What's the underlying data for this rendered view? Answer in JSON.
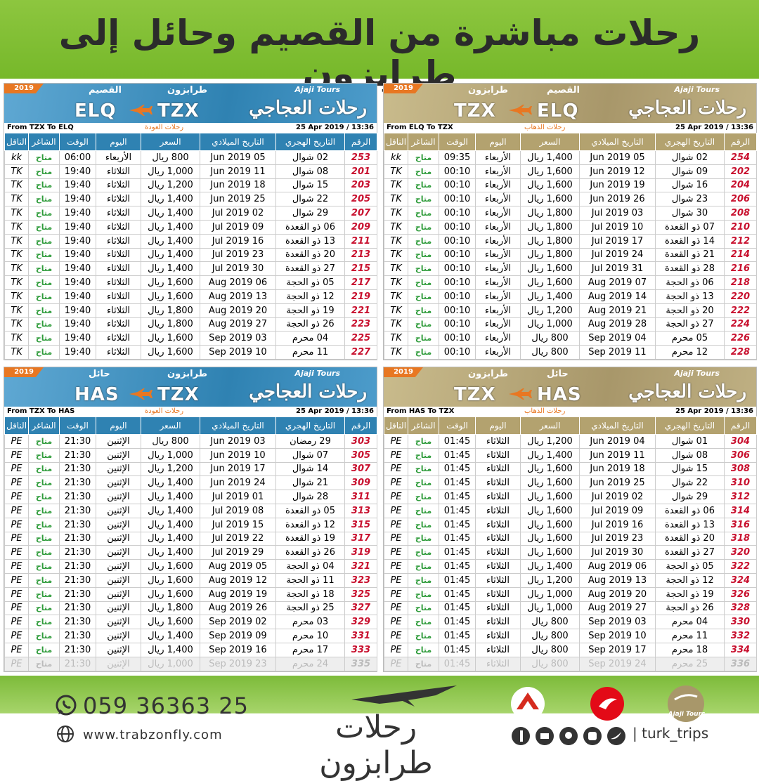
{
  "header": {
    "title": "رحلات مباشرة من القصيم وحائل إلى طرابزون"
  },
  "tables": [
    {
      "year": "2019",
      "brand_en": "Ajaji Tours",
      "brand": "رحلات العجاجي",
      "city_left": "طرابزون",
      "city_right": "القصيم",
      "code_left": "TZX",
      "code_right": "ELQ",
      "route": "From ELQ To TZX",
      "direction": "رحلات الذهاب",
      "timestamp": "25 Apr 2019 / 13:36",
      "columns": [
        "الرقم",
        "التاريخ الهجري",
        "التاريخ الميلادي",
        "السعر",
        "اليوم",
        "الوقت",
        "الشاغر",
        "الناقل"
      ],
      "rows": [
        [
          "254",
          "02 شوال",
          "05 Jun 2019",
          "1,400 ريال",
          "الأربعاء",
          "09:35",
          "متاح",
          "kk"
        ],
        [
          "202",
          "09 شوال",
          "12 Jun 2019",
          "1,600 ريال",
          "الأربعاء",
          "00:10",
          "متاح",
          "TK"
        ],
        [
          "204",
          "16 شوال",
          "19 Jun 2019",
          "1,600 ريال",
          "الأربعاء",
          "00:10",
          "متاح",
          "TK"
        ],
        [
          "206",
          "23 شوال",
          "26 Jun 2019",
          "1,600 ريال",
          "الأربعاء",
          "00:10",
          "متاح",
          "TK"
        ],
        [
          "208",
          "30 شوال",
          "03 Jul 2019",
          "1,800 ريال",
          "الأربعاء",
          "00:10",
          "متاح",
          "TK"
        ],
        [
          "210",
          "07 ذو القعدة",
          "10 Jul 2019",
          "1,800 ريال",
          "الأربعاء",
          "00:10",
          "متاح",
          "TK"
        ],
        [
          "212",
          "14 ذو القعدة",
          "17 Jul 2019",
          "1,800 ريال",
          "الأربعاء",
          "00:10",
          "متاح",
          "TK"
        ],
        [
          "214",
          "21 ذو القعدة",
          "24 Jul 2019",
          "1,800 ريال",
          "الأربعاء",
          "00:10",
          "متاح",
          "TK"
        ],
        [
          "216",
          "28 ذو القعدة",
          "31 Jul 2019",
          "1,600 ريال",
          "الأربعاء",
          "00:10",
          "متاح",
          "TK"
        ],
        [
          "218",
          "06 ذو الحجة",
          "07 Aug 2019",
          "1,600 ريال",
          "الأربعاء",
          "00:10",
          "متاح",
          "TK"
        ],
        [
          "220",
          "13 ذو الحجة",
          "14 Aug 2019",
          "1,400 ريال",
          "الأربعاء",
          "00:10",
          "متاح",
          "TK"
        ],
        [
          "222",
          "20 ذو الحجة",
          "21 Aug 2019",
          "1,200 ريال",
          "الأربعاء",
          "00:10",
          "متاح",
          "TK"
        ],
        [
          "224",
          "27 ذو الحجة",
          "28 Aug 2019",
          "1,000 ريال",
          "الأربعاء",
          "00:10",
          "متاح",
          "TK"
        ],
        [
          "226",
          "05 محرم",
          "04 Sep 2019",
          "800 ريال",
          "الأربعاء",
          "00:10",
          "متاح",
          "TK"
        ],
        [
          "228",
          "12 محرم",
          "11 Sep 2019",
          "800 ريال",
          "الأربعاء",
          "00:10",
          "متاح",
          "TK"
        ]
      ]
    },
    {
      "year": "2019",
      "brand_en": "Ajaji Tours",
      "brand": "رحلات العجاجي",
      "city_left": "القصيم",
      "city_right": "طرابزون",
      "code_left": "ELQ",
      "code_right": "TZX",
      "route": "From TZX To ELQ",
      "direction": "رحلات العودة",
      "timestamp": "25 Apr 2019 / 13:36",
      "columns": [
        "الرقم",
        "التاريخ الهجري",
        "التاريخ الميلادي",
        "السعر",
        "اليوم",
        "الوقت",
        "الشاغر",
        "الناقل"
      ],
      "rows": [
        [
          "253",
          "02 شوال",
          "05 Jun 2019",
          "800 ريال",
          "الأربعاء",
          "06:00",
          "متاح",
          "kk"
        ],
        [
          "201",
          "08 شوال",
          "11 Jun 2019",
          "1,000 ريال",
          "الثلاثاء",
          "19:40",
          "متاح",
          "TK"
        ],
        [
          "203",
          "15 شوال",
          "18 Jun 2019",
          "1,200 ريال",
          "الثلاثاء",
          "19:40",
          "متاح",
          "TK"
        ],
        [
          "205",
          "22 شوال",
          "25 Jun 2019",
          "1,400 ريال",
          "الثلاثاء",
          "19:40",
          "متاح",
          "TK"
        ],
        [
          "207",
          "29 شوال",
          "02 Jul 2019",
          "1,400 ريال",
          "الثلاثاء",
          "19:40",
          "متاح",
          "TK"
        ],
        [
          "209",
          "06 ذو القعدة",
          "09 Jul 2019",
          "1,400 ريال",
          "الثلاثاء",
          "19:40",
          "متاح",
          "TK"
        ],
        [
          "211",
          "13 ذو القعدة",
          "16 Jul 2019",
          "1,400 ريال",
          "الثلاثاء",
          "19:40",
          "متاح",
          "TK"
        ],
        [
          "213",
          "20 ذو القعدة",
          "23 Jul 2019",
          "1,400 ريال",
          "الثلاثاء",
          "19:40",
          "متاح",
          "TK"
        ],
        [
          "215",
          "27 ذو القعدة",
          "30 Jul 2019",
          "1,400 ريال",
          "الثلاثاء",
          "19:40",
          "متاح",
          "TK"
        ],
        [
          "217",
          "05 ذو الحجة",
          "06 Aug 2019",
          "1,600 ريال",
          "الثلاثاء",
          "19:40",
          "متاح",
          "TK"
        ],
        [
          "219",
          "12 ذو الحجة",
          "13 Aug 2019",
          "1,600 ريال",
          "الثلاثاء",
          "19:40",
          "متاح",
          "TK"
        ],
        [
          "221",
          "19 ذو الحجة",
          "20 Aug 2019",
          "1,800 ريال",
          "الثلاثاء",
          "19:40",
          "متاح",
          "TK"
        ],
        [
          "223",
          "26 ذو الحجة",
          "27 Aug 2019",
          "1,800 ريال",
          "الثلاثاء",
          "19:40",
          "متاح",
          "TK"
        ],
        [
          "225",
          "04 محرم",
          "03 Sep 2019",
          "1,600 ريال",
          "الثلاثاء",
          "19:40",
          "متاح",
          "TK"
        ],
        [
          "227",
          "11 محرم",
          "10 Sep 2019",
          "1,600 ريال",
          "الثلاثاء",
          "19:40",
          "متاح",
          "TK"
        ]
      ]
    },
    {
      "year": "2019",
      "brand_en": "Ajaji Tours",
      "brand": "رحلات العجاجي",
      "city_left": "طرابزون",
      "city_right": "حائل",
      "code_left": "TZX",
      "code_right": "HAS",
      "route": "From HAS To TZX",
      "direction": "رحلات الذهاب",
      "timestamp": "25 Apr 2019 / 13:36",
      "columns": [
        "الرقم",
        "التاريخ الهجري",
        "التاريخ الميلادي",
        "السعر",
        "اليوم",
        "الوقت",
        "الشاغر",
        "الناقل"
      ],
      "rows": [
        [
          "304",
          "01 شوال",
          "04 Jun 2019",
          "1,200 ريال",
          "الثلاثاء",
          "01:45",
          "متاح",
          "PE"
        ],
        [
          "306",
          "08 شوال",
          "11 Jun 2019",
          "1,400 ريال",
          "الثلاثاء",
          "01:45",
          "متاح",
          "PE"
        ],
        [
          "308",
          "15 شوال",
          "18 Jun 2019",
          "1,600 ريال",
          "الثلاثاء",
          "01:45",
          "متاح",
          "PE"
        ],
        [
          "310",
          "22 شوال",
          "25 Jun 2019",
          "1,600 ريال",
          "الثلاثاء",
          "01:45",
          "متاح",
          "PE"
        ],
        [
          "312",
          "29 شوال",
          "02 Jul 2019",
          "1,600 ريال",
          "الثلاثاء",
          "01:45",
          "متاح",
          "PE"
        ],
        [
          "314",
          "06 ذو القعدة",
          "09 Jul 2019",
          "1,600 ريال",
          "الثلاثاء",
          "01:45",
          "متاح",
          "PE"
        ],
        [
          "316",
          "13 ذو القعدة",
          "16 Jul 2019",
          "1,600 ريال",
          "الثلاثاء",
          "01:45",
          "متاح",
          "PE"
        ],
        [
          "318",
          "20 ذو القعدة",
          "23 Jul 2019",
          "1,600 ريال",
          "الثلاثاء",
          "01:45",
          "متاح",
          "PE"
        ],
        [
          "320",
          "27 ذو القعدة",
          "30 Jul 2019",
          "1,600 ريال",
          "الثلاثاء",
          "01:45",
          "متاح",
          "PE"
        ],
        [
          "322",
          "05 ذو الحجة",
          "06 Aug 2019",
          "1,400 ريال",
          "الثلاثاء",
          "01:45",
          "متاح",
          "PE"
        ],
        [
          "324",
          "12 ذو الحجة",
          "13 Aug 2019",
          "1,200 ريال",
          "الثلاثاء",
          "01:45",
          "متاح",
          "PE"
        ],
        [
          "326",
          "19 ذو الحجة",
          "20 Aug 2019",
          "1,000 ريال",
          "الثلاثاء",
          "01:45",
          "متاح",
          "PE"
        ],
        [
          "328",
          "26 ذو الحجة",
          "27 Aug 2019",
          "1,000 ريال",
          "الثلاثاء",
          "01:45",
          "متاح",
          "PE"
        ],
        [
          "330",
          "04 محرم",
          "03 Sep 2019",
          "800 ريال",
          "الثلاثاء",
          "01:45",
          "متاح",
          "PE"
        ],
        [
          "332",
          "11 محرم",
          "10 Sep 2019",
          "800 ريال",
          "الثلاثاء",
          "01:45",
          "متاح",
          "PE"
        ],
        [
          "334",
          "18 محرم",
          "17 Sep 2019",
          "800 ريال",
          "الثلاثاء",
          "01:45",
          "متاح",
          "PE"
        ],
        [
          "336",
          "25 محرم",
          "24 Sep 2019",
          "800 ريال",
          "الثلاثاء",
          "01:45",
          "متاح",
          "PE"
        ]
      ]
    },
    {
      "year": "2019",
      "brand_en": "Ajaji Tours",
      "brand": "رحلات العجاجي",
      "city_left": "حائل",
      "city_right": "طرابزون",
      "code_left": "HAS",
      "code_right": "TZX",
      "route": "From TZX To HAS",
      "direction": "رحلات العودة",
      "timestamp": "25 Apr 2019 / 13:36",
      "columns": [
        "الرقم",
        "التاريخ الهجري",
        "التاريخ الميلادي",
        "السعر",
        "اليوم",
        "الوقت",
        "الشاغر",
        "الناقل"
      ],
      "rows": [
        [
          "303",
          "29 رمضان",
          "03 Jun 2019",
          "800 ريال",
          "الإثنين",
          "21:30",
          "متاح",
          "PE"
        ],
        [
          "305",
          "07 شوال",
          "10 Jun 2019",
          "1,000 ريال",
          "الإثنين",
          "21:30",
          "متاح",
          "PE"
        ],
        [
          "307",
          "14 شوال",
          "17 Jun 2019",
          "1,200 ريال",
          "الإثنين",
          "21:30",
          "متاح",
          "PE"
        ],
        [
          "309",
          "21 شوال",
          "24 Jun 2019",
          "1,400 ريال",
          "الإثنين",
          "21:30",
          "متاح",
          "PE"
        ],
        [
          "311",
          "28 شوال",
          "01 Jul 2019",
          "1,400 ريال",
          "الإثنين",
          "21:30",
          "متاح",
          "PE"
        ],
        [
          "313",
          "05 ذو القعدة",
          "08 Jul 2019",
          "1,400 ريال",
          "الإثنين",
          "21:30",
          "متاح",
          "PE"
        ],
        [
          "315",
          "12 ذو القعدة",
          "15 Jul 2019",
          "1,400 ريال",
          "الإثنين",
          "21:30",
          "متاح",
          "PE"
        ],
        [
          "317",
          "19 ذو القعدة",
          "22 Jul 2019",
          "1,400 ريال",
          "الإثنين",
          "21:30",
          "متاح",
          "PE"
        ],
        [
          "319",
          "26 ذو القعدة",
          "29 Jul 2019",
          "1,400 ريال",
          "الإثنين",
          "21:30",
          "متاح",
          "PE"
        ],
        [
          "321",
          "04 ذو الحجة",
          "05 Aug 2019",
          "1,600 ريال",
          "الإثنين",
          "21:30",
          "متاح",
          "PE"
        ],
        [
          "323",
          "11 ذو الحجة",
          "12 Aug 2019",
          "1,600 ريال",
          "الإثنين",
          "21:30",
          "متاح",
          "PE"
        ],
        [
          "325",
          "18 ذو الحجة",
          "19 Aug 2019",
          "1,600 ريال",
          "الإثنين",
          "21:30",
          "متاح",
          "PE"
        ],
        [
          "327",
          "25 ذو الحجة",
          "26 Aug 2019",
          "1,800 ريال",
          "الإثنين",
          "21:30",
          "متاح",
          "PE"
        ],
        [
          "329",
          "03 محرم",
          "02 Sep 2019",
          "1,600 ريال",
          "الإثنين",
          "21:30",
          "متاح",
          "PE"
        ],
        [
          "331",
          "10 محرم",
          "09 Sep 2019",
          "1,400 ريال",
          "الإثنين",
          "21:30",
          "متاح",
          "PE"
        ],
        [
          "333",
          "17 محرم",
          "16 Sep 2019",
          "1,400 ريال",
          "الإثنين",
          "21:30",
          "متاح",
          "PE"
        ],
        [
          "335",
          "24 محرم",
          "23 Sep 2019",
          "1,000 ريال",
          "الإثنين",
          "21:30",
          "متاح",
          "PE"
        ]
      ]
    }
  ],
  "footer": {
    "phone": "059 36363 25",
    "website": "www.trabzonfly.com",
    "logo": "رحلات طرابزون",
    "ajaji": "Ajaji Tours",
    "handle": "| turk_trips"
  }
}
